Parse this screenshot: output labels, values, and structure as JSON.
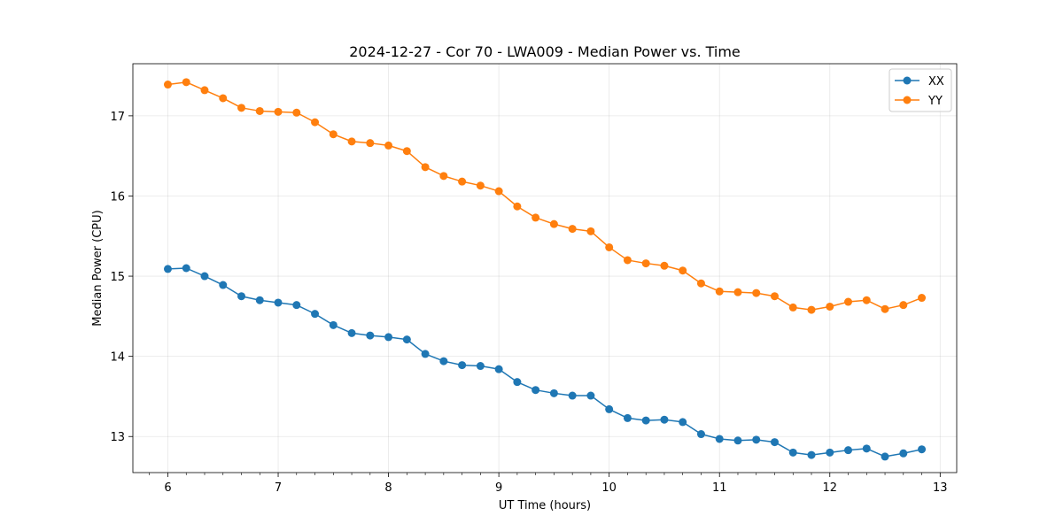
{
  "chart_data": {
    "type": "line",
    "title": "2024-12-27 - Cor 70 - LWA009 - Median Power vs. Time",
    "xlabel": "UT Time (hours)",
    "ylabel": "Median Power (CPU)",
    "xlim": [
      5.683,
      13.15
    ],
    "ylim": [
      12.55,
      17.65
    ],
    "xticks": [
      6,
      7,
      8,
      9,
      10,
      11,
      12,
      13
    ],
    "xtick_labels": [
      "6",
      "7",
      "8",
      "9",
      "10",
      "11",
      "12",
      "13"
    ],
    "yticks": [
      13,
      14,
      15,
      16,
      17
    ],
    "ytick_labels": [
      "13",
      "14",
      "15",
      "16",
      "17"
    ],
    "grid": true,
    "legend_position": "top-right",
    "x": [
      6.0,
      6.1667,
      6.3333,
      6.5,
      6.6667,
      6.8333,
      7.0,
      7.1667,
      7.3333,
      7.5,
      7.6667,
      7.8333,
      8.0,
      8.1667,
      8.3333,
      8.5,
      8.6667,
      8.8333,
      9.0,
      9.1667,
      9.3333,
      9.5,
      9.6667,
      9.8333,
      10.0,
      10.1667,
      10.3333,
      10.5,
      10.6667,
      10.8333,
      11.0,
      11.1667,
      11.3333,
      11.5,
      11.6667,
      11.8333,
      12.0,
      12.1667,
      12.3333,
      12.5,
      12.6667,
      12.8333
    ],
    "series": [
      {
        "name": "XX",
        "color": "#1f77b4",
        "values": [
          15.09,
          15.1,
          15.0,
          14.89,
          14.75,
          14.7,
          14.67,
          14.64,
          14.53,
          14.39,
          14.29,
          14.26,
          14.24,
          14.21,
          14.03,
          13.94,
          13.89,
          13.88,
          13.84,
          13.68,
          13.58,
          13.54,
          13.51,
          13.51,
          13.34,
          13.23,
          13.2,
          13.21,
          13.18,
          13.03,
          12.97,
          12.95,
          12.96,
          12.93,
          12.8,
          12.77,
          12.8,
          12.83,
          12.85,
          12.75,
          12.79,
          12.84
        ]
      },
      {
        "name": "YY",
        "color": "#ff7f0e",
        "values": [
          17.39,
          17.42,
          17.32,
          17.22,
          17.1,
          17.06,
          17.05,
          17.04,
          16.92,
          16.77,
          16.68,
          16.66,
          16.63,
          16.56,
          16.36,
          16.25,
          16.18,
          16.13,
          16.06,
          15.87,
          15.73,
          15.65,
          15.59,
          15.56,
          15.36,
          15.2,
          15.16,
          15.13,
          15.07,
          14.91,
          14.81,
          14.8,
          14.79,
          14.75,
          14.61,
          14.58,
          14.62,
          14.68,
          14.7,
          14.59,
          14.64,
          14.73
        ]
      }
    ]
  }
}
